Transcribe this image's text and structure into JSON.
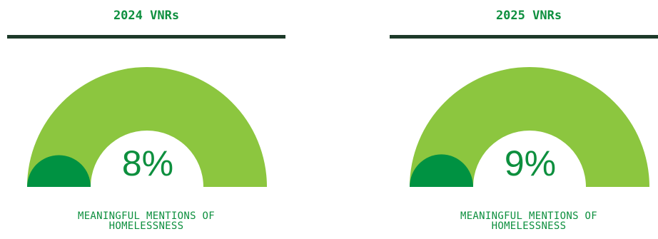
{
  "colors": {
    "gauge_track": "#8cc63f",
    "gauge_fill": "#009242",
    "value_text": "#0d8f3e",
    "divider": "#1d3a29"
  },
  "chart_data": [
    {
      "type": "gauge",
      "title": "2024 VNRs",
      "value": 8,
      "value_label": "8%",
      "max": 100,
      "caption": "MEANINGFUL MENTIONS OF\nHOMELESSNESS"
    },
    {
      "type": "gauge",
      "title": "2025 VNRs",
      "value": 9,
      "value_label": "9%",
      "max": 100,
      "caption": "MEANINGFUL MENTIONS OF\nHOMELESSNESS"
    }
  ]
}
